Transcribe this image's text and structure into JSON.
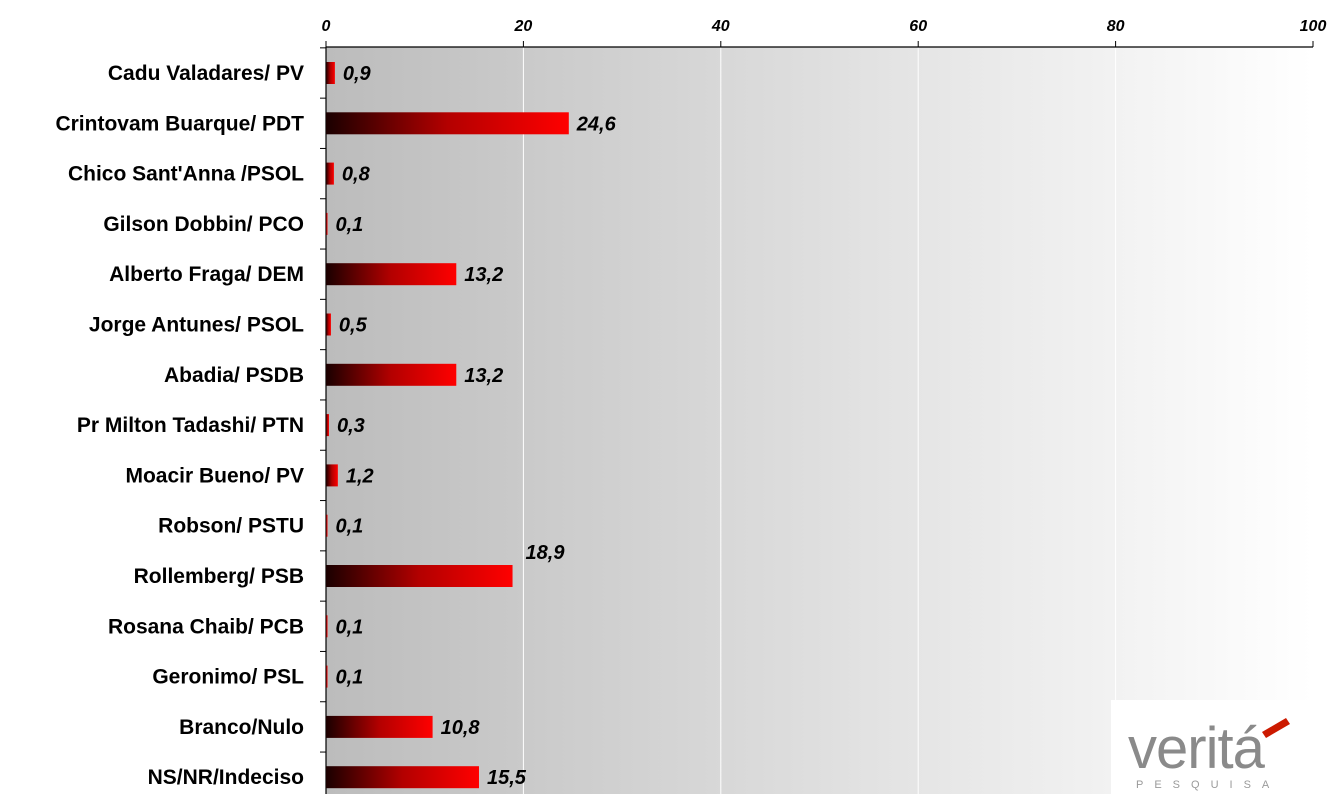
{
  "chart_data": {
    "type": "bar",
    "orientation": "horizontal",
    "categories": [
      "Cadu Valadares/ PV",
      "Crintovam Buarque/ PDT",
      "Chico Sant'Anna /PSOL",
      "Gilson Dobbin/ PCO",
      "Alberto Fraga/ DEM",
      "Jorge Antunes/ PSOL",
      "Abadia/ PSDB",
      "Pr Milton Tadashi/ PTN",
      "Moacir Bueno/ PV",
      "Robson/ PSTU",
      "Rollemberg/ PSB",
      "Rosana Chaib/ PCB",
      "Geronimo/ PSL",
      "Branco/Nulo",
      "NS/NR/Indeciso"
    ],
    "values": [
      0.9,
      24.6,
      0.8,
      0.1,
      13.2,
      0.5,
      13.2,
      0.3,
      1.2,
      0.1,
      18.9,
      0.1,
      0.1,
      10.8,
      15.5
    ],
    "value_labels": [
      "0,9",
      "24,6",
      "0,8",
      "0,1",
      "13,2",
      "0,5",
      "13,2",
      "0,3",
      "1,2",
      "0,1",
      "18,9",
      "0,1",
      "0,1",
      "10,8",
      "15,5"
    ],
    "xlim": [
      0,
      100
    ],
    "xticks": [
      0,
      20,
      40,
      60,
      80,
      100
    ],
    "xtick_labels": [
      "0",
      "20",
      "40",
      "60",
      "80",
      "100"
    ],
    "axis_position": "top",
    "grid": true,
    "title": "",
    "xlabel": "",
    "ylabel": "",
    "colors": {
      "bar_start": "#1a0000",
      "bar_mid": "#b00000",
      "bar_end": "#ff0000",
      "plot_bg_dark": "#bdbdbd",
      "plot_bg_light": "#ffffff",
      "grid": "#ffffff"
    }
  },
  "logo": {
    "word": "veritá",
    "subtitle": "PESQUISA"
  }
}
